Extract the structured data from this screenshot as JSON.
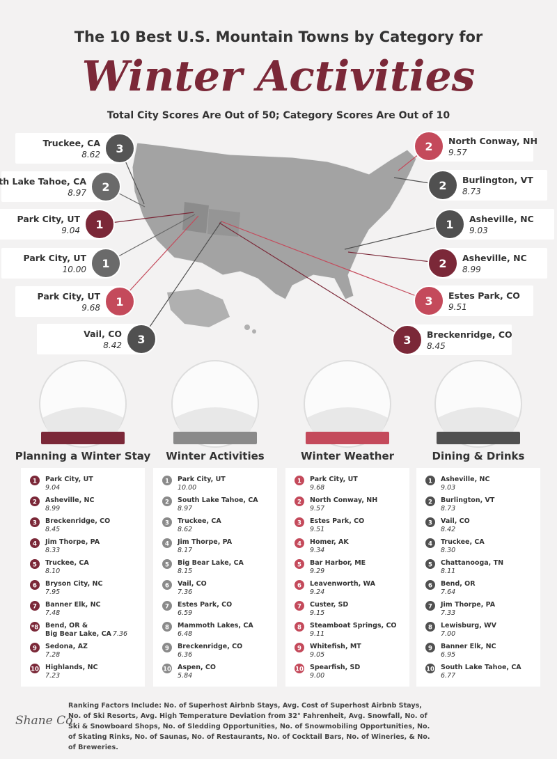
{
  "header": {
    "pretitle": "The 10 Best U.S. Mountain Towns by Category for",
    "title": "Winter Activities",
    "subtitle": "Total City Scores Are Out of 50; Category Scores Are Out of 10"
  },
  "callouts": [
    {
      "rank": 3,
      "city": "Truckee, CA",
      "score": "8.62"
    },
    {
      "rank": 2,
      "city": "South Lake Tahoe, CA",
      "score": "8.97"
    },
    {
      "rank": 1,
      "city": "Park City, UT",
      "score": "9.04"
    },
    {
      "rank": 1,
      "city": "Park City, UT",
      "score": "10.00"
    },
    {
      "rank": 1,
      "city": "Park City, UT",
      "score": "9.68"
    },
    {
      "rank": 3,
      "city": "Vail, CO",
      "score": "8.42"
    },
    {
      "rank": 2,
      "city": "North Conway, NH",
      "score": "9.57"
    },
    {
      "rank": 2,
      "city": "Burlington, VT",
      "score": "8.73"
    },
    {
      "rank": 1,
      "city": "Asheville, NC",
      "score": "9.03"
    },
    {
      "rank": 2,
      "city": "Asheville, NC",
      "score": "8.99"
    },
    {
      "rank": 3,
      "city": "Estes Park, CO",
      "score": "9.51"
    },
    {
      "rank": 3,
      "city": "Breckenridge, CO",
      "score": "8.45"
    }
  ],
  "categories": [
    {
      "title": "Planning a Winter Stay",
      "color": "#7b2838",
      "items": [
        {
          "rank": 1,
          "city": "Park City, UT",
          "score": "9.04"
        },
        {
          "rank": 2,
          "city": "Asheville, NC",
          "score": "8.99"
        },
        {
          "rank": 3,
          "city": "Breckenridge, CO",
          "score": "8.45"
        },
        {
          "rank": 4,
          "city": "Jim Thorpe, PA",
          "score": "8.33"
        },
        {
          "rank": 5,
          "city": "Truckee, CA",
          "score": "8.10"
        },
        {
          "rank": 6,
          "city": "Bryson City, NC",
          "score": "7.95"
        },
        {
          "rank": 7,
          "city": "Banner Elk, NC",
          "score": "7.48"
        },
        {
          "rank": "*8",
          "city": "Bend, OR &",
          "city_2": "Big Bear Lake, CA",
          "score": "7.36"
        },
        {
          "rank": 9,
          "city": "Sedona, AZ",
          "score": "7.28"
        },
        {
          "rank": 10,
          "city": "Highlands, NC",
          "score": "7.23"
        }
      ]
    },
    {
      "title": "Winter Activities",
      "color": "#8a8a8a",
      "items": [
        {
          "rank": 1,
          "city": "Park City, UT",
          "score": "10.00"
        },
        {
          "rank": 2,
          "city": "South Lake Tahoe, CA",
          "score": "8.97"
        },
        {
          "rank": 3,
          "city": "Truckee, CA",
          "score": "8.62"
        },
        {
          "rank": 4,
          "city": "Jim Thorpe, PA",
          "score": "8.17"
        },
        {
          "rank": 5,
          "city": "Big Bear Lake, CA",
          "score": "8.15"
        },
        {
          "rank": 6,
          "city": "Vail, CO",
          "score": "7.36"
        },
        {
          "rank": 7,
          "city": "Estes Park, CO",
          "score": "6.59"
        },
        {
          "rank": 8,
          "city": "Mammoth Lakes, CA",
          "score": "6.48"
        },
        {
          "rank": 9,
          "city": "Breckenridge, CO",
          "score": "6.36"
        },
        {
          "rank": 10,
          "city": "Aspen, CO",
          "score": "5.84"
        }
      ]
    },
    {
      "title": "Winter Weather",
      "color": "#c44a5b",
      "items": [
        {
          "rank": 1,
          "city": "Park City, UT",
          "score": "9.68"
        },
        {
          "rank": 2,
          "city": "North Conway, NH",
          "score": "9.57"
        },
        {
          "rank": 3,
          "city": "Estes Park, CO",
          "score": "9.51"
        },
        {
          "rank": 4,
          "city": "Homer, AK",
          "score": "9.34"
        },
        {
          "rank": 5,
          "city": "Bar Harbor, ME",
          "score": "9.29"
        },
        {
          "rank": 6,
          "city": "Leavenworth, WA",
          "score": "9.24"
        },
        {
          "rank": 7,
          "city": "Custer, SD",
          "score": "9.15"
        },
        {
          "rank": 8,
          "city": "Steamboat Springs, CO",
          "score": "9.11"
        },
        {
          "rank": 9,
          "city": "Whitefish, MT",
          "score": "9.05"
        },
        {
          "rank": 10,
          "city": "Spearfish, SD",
          "score": "9.00"
        }
      ]
    },
    {
      "title": "Dining & Drinks",
      "color": "#505050",
      "items": [
        {
          "rank": 1,
          "city": "Asheville, NC",
          "score": "9.03"
        },
        {
          "rank": 2,
          "city": "Burlington, VT",
          "score": "8.73"
        },
        {
          "rank": 3,
          "city": "Vail, CO",
          "score": "8.42"
        },
        {
          "rank": 4,
          "city": "Truckee, CA",
          "score": "8.30"
        },
        {
          "rank": 5,
          "city": "Chattanooga, TN",
          "score": "8.11"
        },
        {
          "rank": 6,
          "city": "Bend, OR",
          "score": "7.64"
        },
        {
          "rank": 7,
          "city": "Jim Thorpe, PA",
          "score": "7.33"
        },
        {
          "rank": 8,
          "city": "Lewisburg, WV",
          "score": "7.00"
        },
        {
          "rank": 9,
          "city": "Banner Elk, NC",
          "score": "6.95"
        },
        {
          "rank": 10,
          "city": "South Lake Tahoe, CA",
          "score": "6.77"
        }
      ]
    }
  ],
  "footer": {
    "logo": "Shane Co.",
    "text": "Ranking Factors Include: No. of Superhost Airbnb Stays, Avg. Cost of Superhost Airbnb Stays, No. of Ski Resorts, Avg. High Temperature Deviation from 32° Fahrenheit, Avg. Snowfall, No. of Ski & Snowboard Shops, No. of Sledding Opportunities, No. of Snowmobiling Opportunities, No. of Skating Rinks, No. of Saunas, No. of Restaurants, No. of Cocktail Bars, No. of Wineries, & No. of Breweries."
  }
}
